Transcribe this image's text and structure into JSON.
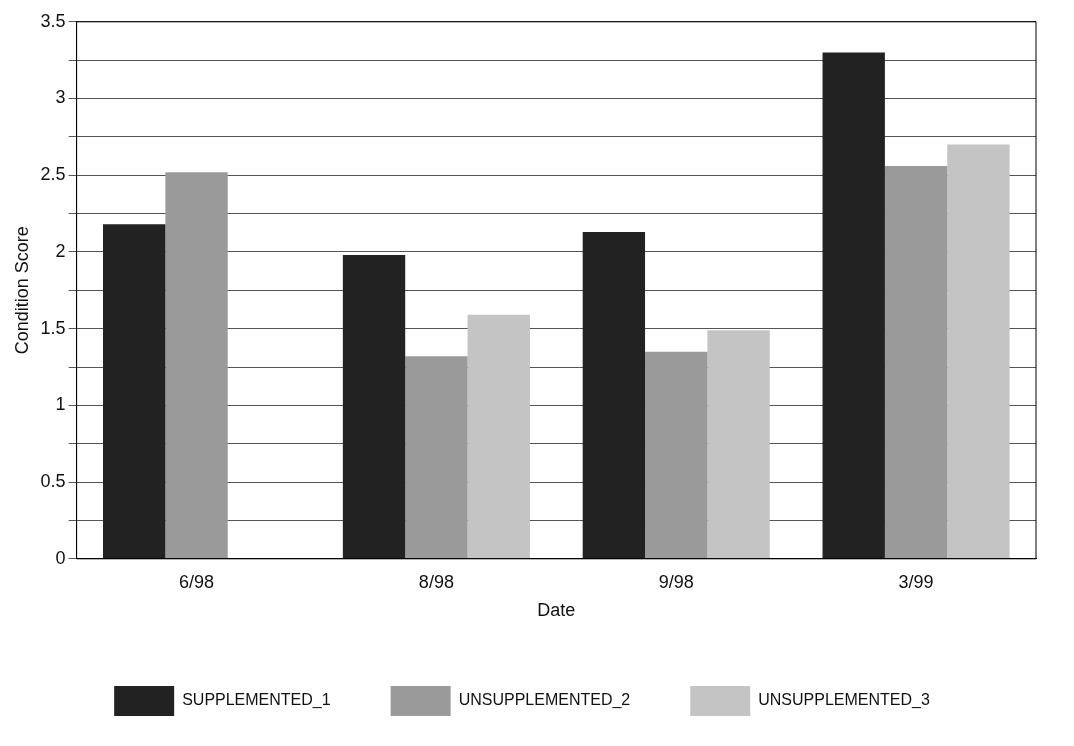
{
  "chart_data": {
    "type": "bar",
    "xlabel": "Date",
    "ylabel": "Condition Score",
    "categories": [
      "6/98",
      "8/98",
      "9/98",
      "3/99"
    ],
    "series": [
      {
        "name": "SUPPLEMENTED_1",
        "color": "#222222",
        "values": [
          2.18,
          1.98,
          2.13,
          3.3
        ]
      },
      {
        "name": "UNSUPPLEMENTED_2",
        "color": "#9a9a9a",
        "values": [
          2.52,
          1.32,
          1.35,
          2.56
        ]
      },
      {
        "name": "UNSUPPLEMENTED_3",
        "color": "#c4c4c4",
        "values": [
          null,
          1.59,
          1.49,
          2.7
        ]
      }
    ],
    "ylim": [
      0,
      3.5
    ],
    "yticks": [
      0,
      {
        "value": 0.25,
        "label": null
      },
      0.5,
      {
        "value": 0.75,
        "label": null
      },
      1,
      {
        "value": 1.25,
        "label": null
      },
      1.5,
      {
        "value": 1.75,
        "label": null
      },
      2,
      {
        "value": 2.25,
        "label": null
      },
      2.5,
      {
        "value": 2.75,
        "label": null
      },
      3,
      {
        "value": 3.25,
        "label": null
      },
      3.5
    ],
    "grid": "y",
    "legend": "bottom"
  }
}
